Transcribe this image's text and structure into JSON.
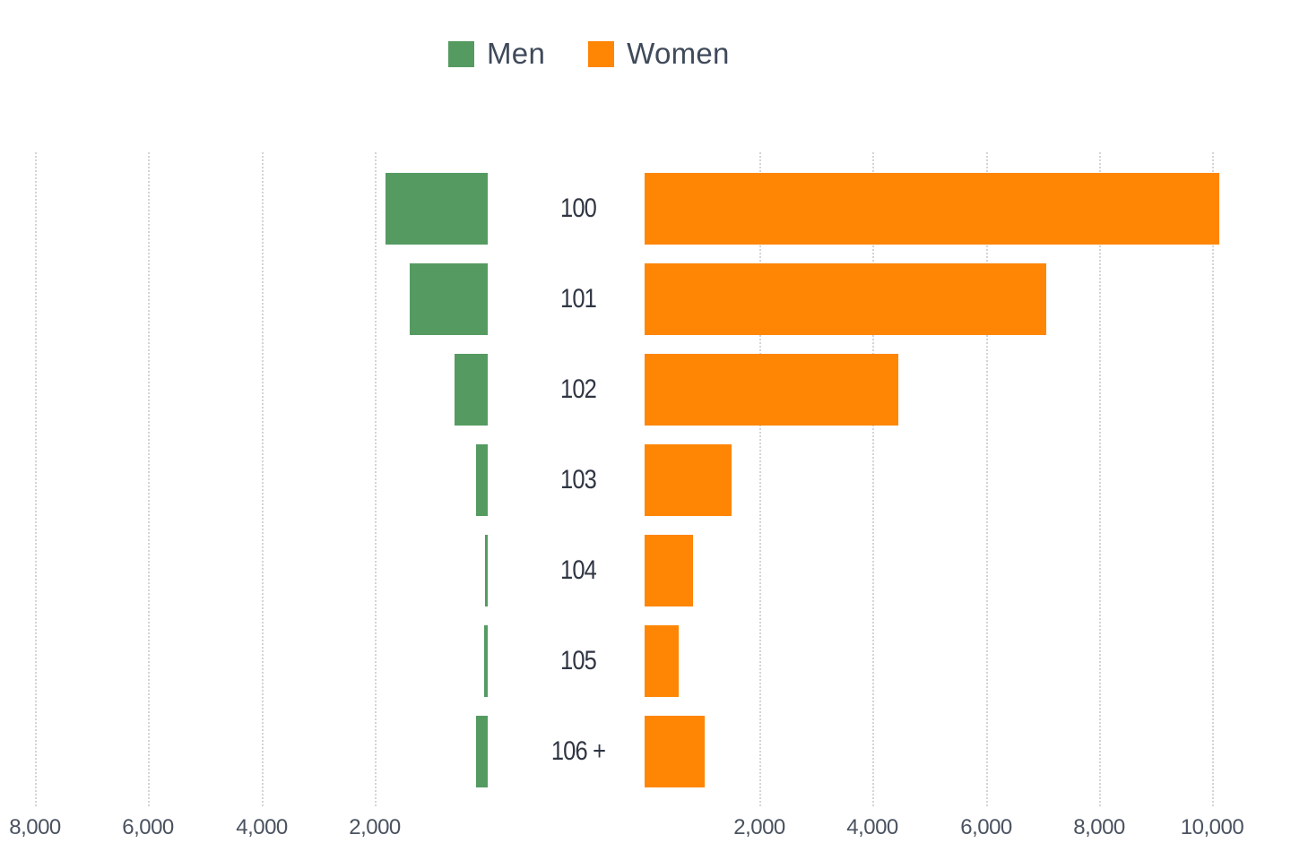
{
  "legend": {
    "items": [
      {
        "label": "Men",
        "color": "#559b61"
      },
      {
        "label": "Women",
        "color": "#ff8605"
      }
    ]
  },
  "axes": {
    "left_ticks": [
      "8,000",
      "6,000",
      "4,000",
      "2,000"
    ],
    "right_ticks": [
      "2,000",
      "4,000",
      "6,000",
      "8,000",
      "10,000"
    ]
  },
  "rows": [
    {
      "label": "100"
    },
    {
      "label": "101"
    },
    {
      "label": "102"
    },
    {
      "label": "103"
    },
    {
      "label": "104"
    },
    {
      "label": "105"
    },
    {
      "label": "106 +"
    }
  ],
  "chart_data": {
    "type": "bar",
    "orientation": "horizontal",
    "subtype": "population-pyramid",
    "title": "",
    "categories": [
      "100",
      "101",
      "102",
      "103",
      "104",
      "105",
      "106 +"
    ],
    "series": [
      {
        "name": "Men",
        "color": "#559b61",
        "side": "left",
        "values": [
          1800,
          1380,
          590,
          210,
          50,
          60,
          200
        ]
      },
      {
        "name": "Women",
        "color": "#ff8605",
        "side": "right",
        "values": [
          10130,
          7080,
          4470,
          1530,
          850,
          600,
          1060
        ]
      }
    ],
    "xlabel": "",
    "ylabel": "",
    "left_axis": {
      "range": [
        0,
        8000
      ],
      "ticks": [
        2000,
        4000,
        6000,
        8000
      ]
    },
    "right_axis": {
      "range": [
        0,
        10000
      ],
      "ticks": [
        2000,
        4000,
        6000,
        8000,
        10000
      ]
    },
    "grid": true,
    "legend_position": "top"
  }
}
